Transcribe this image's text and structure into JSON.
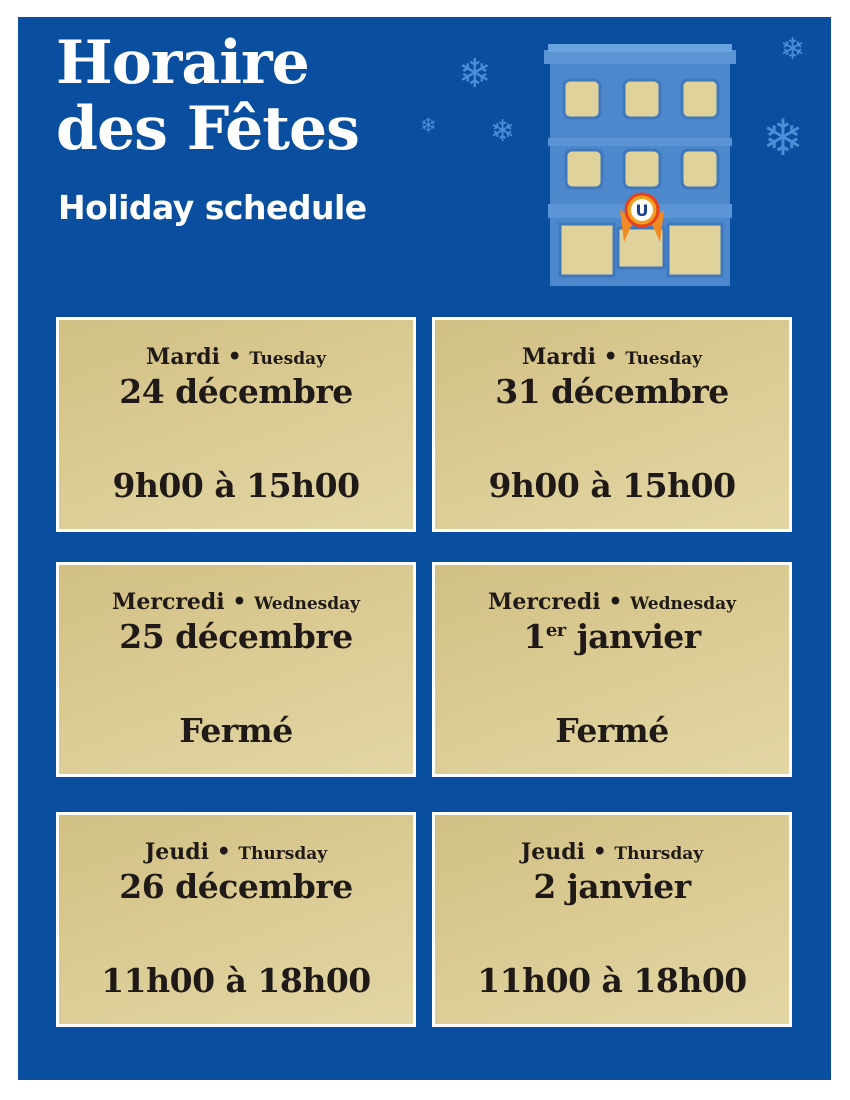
{
  "header": {
    "title_line1": "Horaire",
    "title_line2": "des Fêtes",
    "subtitle": "Holiday schedule"
  },
  "colors": {
    "background": "#0a4f9f",
    "card": "#d8c98f",
    "text": "#1f1a17"
  },
  "decoration": {
    "illustration": "storefront-building-icon",
    "snowflake": "snowflake-icon",
    "logo_letter": "U"
  },
  "schedule": [
    {
      "day_fr": "Mardi",
      "day_en": "Tuesday",
      "date": "24 décembre",
      "date_sup": "",
      "date_rest": "",
      "hours": "9h00 à 15h00"
    },
    {
      "day_fr": "Mardi",
      "day_en": "Tuesday",
      "date": "31 décembre",
      "date_sup": "",
      "date_rest": "",
      "hours": "9h00 à 15h00"
    },
    {
      "day_fr": "Mercredi",
      "day_en": "Wednesday",
      "date": "25 décembre",
      "date_sup": "",
      "date_rest": "",
      "hours": "Fermé"
    },
    {
      "day_fr": "Mercredi",
      "day_en": "Wednesday",
      "date": "1",
      "date_sup": "er",
      "date_rest": " janvier",
      "hours": "Fermé"
    },
    {
      "day_fr": "Jeudi",
      "day_en": "Thursday",
      "date": "26 décembre",
      "date_sup": "",
      "date_rest": "",
      "hours": "11h00 à 18h00"
    },
    {
      "day_fr": "Jeudi",
      "day_en": "Thursday",
      "date": "2 janvier",
      "date_sup": "",
      "date_rest": "",
      "hours": "11h00 à 18h00"
    }
  ]
}
